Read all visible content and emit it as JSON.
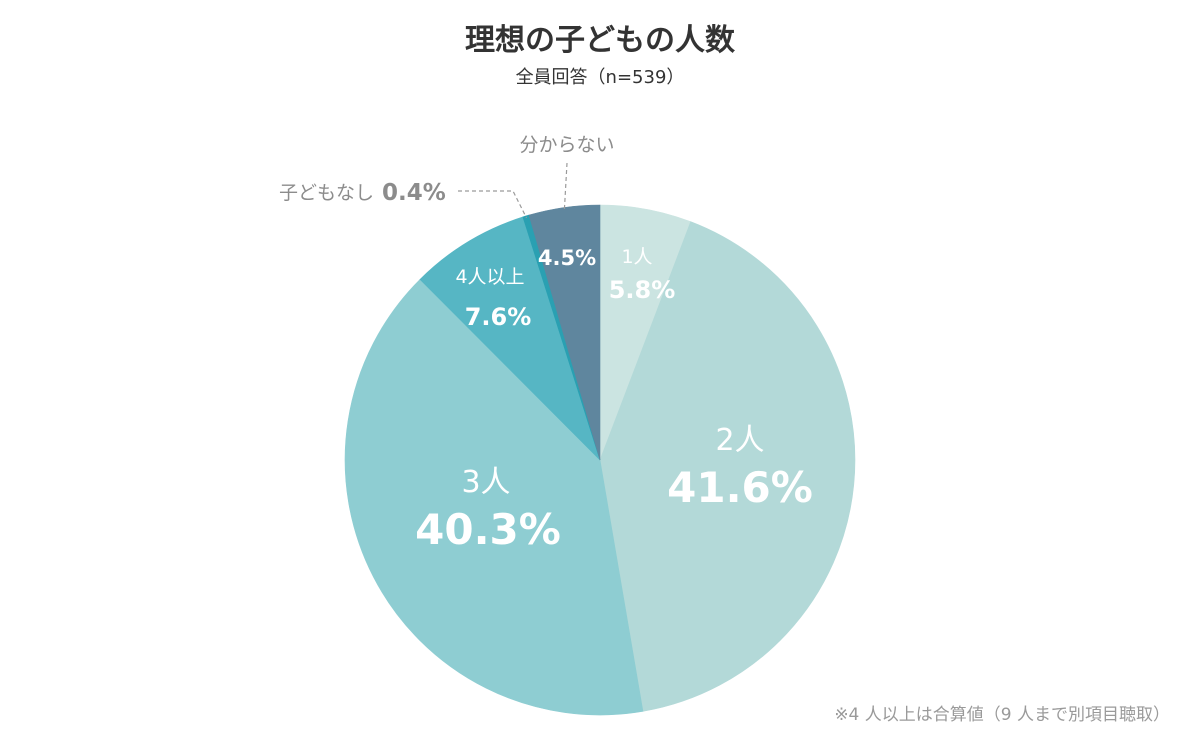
{
  "chart_data": {
    "type": "pie",
    "title": "理想の子どもの人数",
    "subtitle": "全員回答（n=539）",
    "start": "12 o'clock, clockwise",
    "slices": [
      {
        "name": "1人",
        "value": 5.8,
        "label": "5.8%",
        "color": "#cbe4e1"
      },
      {
        "name": "2人",
        "value": 41.6,
        "label": "41.6%",
        "color": "#b3d9d8"
      },
      {
        "name": "3人",
        "value": 40.3,
        "label": "40.3%",
        "color": "#8ecdd2"
      },
      {
        "name": "4人以上",
        "value": 7.6,
        "label": "7.6%",
        "color": "#56b6c4"
      },
      {
        "name": "子どもなし",
        "value": 0.4,
        "label": "0.4%",
        "color": "#2aa0b2"
      },
      {
        "name": "分からない",
        "value": 4.5,
        "label": "4.5%",
        "color": "#5f869e"
      }
    ],
    "footnote": "※4 人以上は合算値（9 人まで別項目聴取）"
  }
}
